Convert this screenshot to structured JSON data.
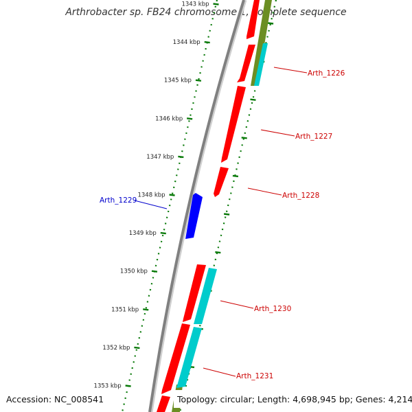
{
  "title": "Arthrobacter sp. FB24 chromosome 1, complete sequence",
  "footer": {
    "accession": "Accession: NC_008541",
    "summary": "Topology: circular; Length: 4,698,945 bp; Genes: 4,214"
  },
  "ticks": [
    {
      "kbp": 1343,
      "label": "1343 kbp"
    },
    {
      "kbp": 1344,
      "label": "1344 kbp"
    },
    {
      "kbp": 1345,
      "label": "1345 kbp"
    },
    {
      "kbp": 1346,
      "label": "1346 kbp"
    },
    {
      "kbp": 1347,
      "label": "1347 kbp"
    },
    {
      "kbp": 1348,
      "label": "1348 kbp"
    },
    {
      "kbp": 1349,
      "label": "1349 kbp"
    },
    {
      "kbp": 1350,
      "label": "1350 kbp"
    },
    {
      "kbp": 1351,
      "label": "1351 kbp"
    },
    {
      "kbp": 1352,
      "label": "1352 kbp"
    },
    {
      "kbp": 1353,
      "label": "1353 kbp"
    }
  ],
  "gene_labels": [
    {
      "name": "Arth_1226",
      "strand": "forward"
    },
    {
      "name": "Arth_1227",
      "strand": "forward"
    },
    {
      "name": "Arth_1228",
      "strand": "forward"
    },
    {
      "name": "Arth_1229",
      "strand": "reverse"
    },
    {
      "name": "Arth_1230",
      "strand": "forward"
    },
    {
      "name": "Arth_1231",
      "strand": "forward"
    }
  ],
  "colors": {
    "backbone": "#808080",
    "cds_forward": "#ff0000",
    "cds_reverse": "#0000ff",
    "orf": "#00cccc",
    "rna_gene": "#6b8e23",
    "tick": "#0a7a0a",
    "label_forward": "#cc0000",
    "label_reverse": "#0000cc"
  }
}
